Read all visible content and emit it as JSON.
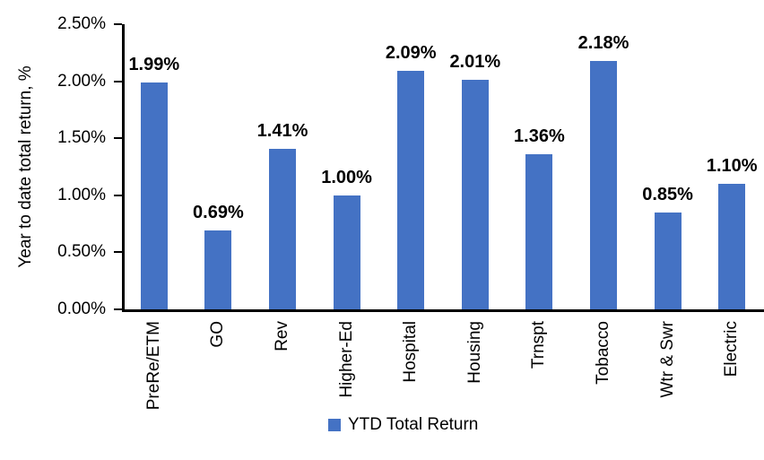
{
  "accent_color": "#4472C4",
  "axis_color": "#000000",
  "chart_data": {
    "type": "bar",
    "title": "",
    "xlabel": "",
    "ylabel": "Year to date total return, %",
    "categories": [
      "PreRe/ETM",
      "GO",
      "Rev",
      "Higher-Ed",
      "Hospital",
      "Housing",
      "Trnspt",
      "Tobacco",
      "Wtr & Swr",
      "Electric"
    ],
    "values": [
      1.99,
      0.69,
      1.41,
      1.0,
      2.09,
      2.01,
      1.36,
      2.18,
      0.85,
      1.1
    ],
    "value_labels": [
      "1.99%",
      "0.69%",
      "1.41%",
      "1.00%",
      "2.09%",
      "2.01%",
      "1.36%",
      "2.18%",
      "0.85%",
      "1.10%"
    ],
    "y_ticks": [
      "0.00%",
      "0.50%",
      "1.00%",
      "1.50%",
      "2.00%",
      "2.50%"
    ],
    "ylim": [
      0,
      2.5
    ],
    "grid": false,
    "bar_color": "#4472C4",
    "legend_position": "bottom",
    "legend": [
      {
        "label": "YTD Total Return",
        "color": "#4472C4"
      }
    ]
  }
}
